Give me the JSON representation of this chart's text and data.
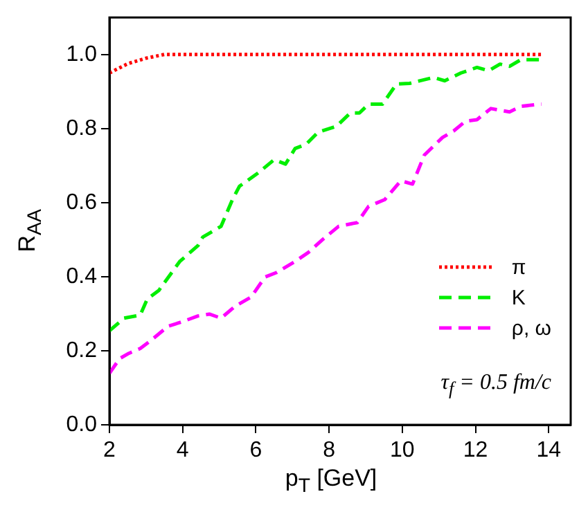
{
  "chart_data": {
    "type": "line",
    "xlabel": "p$_{T}$ [GeV]",
    "ylabel": "R$_{AA}$",
    "xlim": [
      2,
      14.6
    ],
    "xticks": [
      2,
      4,
      6,
      8,
      10,
      12,
      14
    ],
    "ylim": [
      0,
      1.1
    ],
    "yticks": [
      {
        "value": 0,
        "label": "0.0"
      },
      0.2,
      0.4,
      0.6,
      0.8,
      {
        "value": 1,
        "label": "1.0"
      }
    ],
    "grid": false,
    "legend": "right",
    "marker": "none",
    "annotations": [
      "τ$_{f}$ = 0.5 fm/c"
    ],
    "series": [
      {
        "name": "π",
        "color": "#ff0000",
        "line_style": "dotted",
        "x": [
          2,
          2.5,
          3,
          3.5,
          4,
          5,
          6,
          7,
          8,
          9,
          10,
          11,
          12,
          13,
          13.8
        ],
        "values": [
          0.95,
          0.975,
          0.99,
          1.0,
          1.0,
          1.0,
          1.0,
          1.0,
          1.0,
          1.0,
          1.0,
          1.0,
          1.0,
          1.0,
          1.0
        ]
      },
      {
        "name": "K",
        "color": "#00ee00",
        "line_style": "dashed",
        "x": [
          2,
          2.4,
          2.84,
          3.03,
          3.35,
          3.92,
          4.42,
          4.55,
          5.05,
          5.36,
          5.55,
          6.06,
          6.5,
          6.81,
          7.07,
          7.38,
          7.7,
          8.2,
          8.58,
          8.83,
          9.08,
          9.46,
          9.84,
          10.2,
          10.85,
          11.16,
          11.6,
          12.04,
          12.36,
          12.67,
          12.93,
          13.24,
          13.8
        ],
        "values": [
          0.254,
          0.288,
          0.296,
          0.339,
          0.363,
          0.441,
          0.484,
          0.507,
          0.536,
          0.608,
          0.644,
          0.68,
          0.716,
          0.704,
          0.746,
          0.758,
          0.79,
          0.806,
          0.842,
          0.842,
          0.866,
          0.866,
          0.92,
          0.922,
          0.938,
          0.929,
          0.95,
          0.965,
          0.956,
          0.974,
          0.968,
          0.986,
          0.986
        ]
      },
      {
        "name": "ρ, ω",
        "color": "#ff00ff",
        "line_style": "dashed",
        "x": [
          2,
          2.28,
          2.53,
          2.84,
          3.16,
          3.6,
          3.98,
          4.42,
          4.73,
          5.05,
          5.43,
          5.87,
          6.25,
          6.56,
          7.07,
          7.44,
          7.82,
          8.26,
          8.77,
          9.08,
          9.52,
          9.96,
          10.28,
          10.6,
          11.1,
          11.41,
          11.73,
          12.04,
          12.42,
          12.93,
          13.24,
          13.8
        ],
        "values": [
          0.139,
          0.179,
          0.193,
          0.206,
          0.23,
          0.266,
          0.278,
          0.294,
          0.299,
          0.288,
          0.32,
          0.345,
          0.399,
          0.411,
          0.441,
          0.466,
          0.5,
          0.536,
          0.546,
          0.59,
          0.608,
          0.659,
          0.65,
          0.728,
          0.776,
          0.794,
          0.82,
          0.824,
          0.854,
          0.845,
          0.86,
          0.866
        ]
      }
    ]
  }
}
